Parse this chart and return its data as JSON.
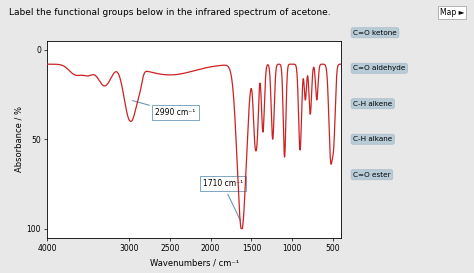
{
  "title": "Label the functional groups below in the infrared spectrum of acetone.",
  "xlabel": "Wavenumbers / cm⁻¹",
  "ylabel": "Absorbance / %",
  "xlim": [
    4000,
    400
  ],
  "ylim": [
    105,
    -5
  ],
  "yticks": [
    0,
    50,
    100
  ],
  "xticks": [
    4000,
    3000,
    2500,
    2000,
    1500,
    1000,
    500
  ],
  "bg_color": "#e8e8e8",
  "plot_bg": "#ffffff",
  "line_color": "#cc2222",
  "annotation_line_color": "#6699bb",
  "legend_labels": [
    "C=O ketone",
    "C=O aldehyde",
    "C-H alkene",
    "C-H alkane",
    "C=O ester"
  ],
  "legend_box_color": "#b8ccd8",
  "annotation_2990": "2990 cm⁻¹",
  "annotation_1710": "1710 cm⁻¹",
  "map_label": "Map ►"
}
